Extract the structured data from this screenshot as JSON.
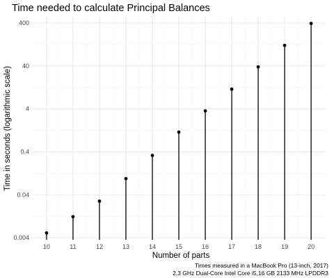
{
  "chart_data": {
    "type": "scatter",
    "title": "Time needed to calculate Principal Balances",
    "xlabel": "Number of parts",
    "ylabel": "Time in seconds (logarithmic scale)",
    "y_scale": "log10",
    "x": [
      10,
      11,
      12,
      13,
      14,
      15,
      16,
      17,
      18,
      19,
      20
    ],
    "y": [
      0.0052,
      0.0124,
      0.0285,
      0.0955,
      0.33,
      1.15,
      3.6,
      11.5,
      38,
      120,
      390
    ],
    "xlim": [
      9.45,
      20.55
    ],
    "ylim": [
      0.0036,
      560
    ],
    "x_ticks": [
      {
        "value": 10,
        "label": "10"
      },
      {
        "value": 11,
        "label": "11"
      },
      {
        "value": 12,
        "label": "12"
      },
      {
        "value": 13,
        "label": "13"
      },
      {
        "value": 14,
        "label": "14"
      },
      {
        "value": 15,
        "label": "15"
      },
      {
        "value": 16,
        "label": "16"
      },
      {
        "value": 17,
        "label": "17"
      },
      {
        "value": 18,
        "label": "18"
      },
      {
        "value": 19,
        "label": "19"
      },
      {
        "value": 20,
        "label": "20"
      }
    ],
    "y_ticks": [
      {
        "value": 0.004,
        "label": "0.004"
      },
      {
        "value": 0.04,
        "label": "0.04"
      },
      {
        "value": 0.4,
        "label": "0.4"
      },
      {
        "value": 4,
        "label": "4"
      },
      {
        "value": 40,
        "label": "40"
      },
      {
        "value": 400,
        "label": "400"
      }
    ],
    "grid": true,
    "legend": "none",
    "stems": true,
    "caption": [
      "Times measured in a MacBook Pro (13-inch, 2017)",
      "2,3 GHz Dual-Core Intel Core i5,16 GB 2133 MHz LPDDR3"
    ],
    "colors": {
      "point": "#000000",
      "grid_major": "#e6e6e6",
      "grid_minor": "#f2f2f2",
      "background": "#ffffff"
    }
  }
}
